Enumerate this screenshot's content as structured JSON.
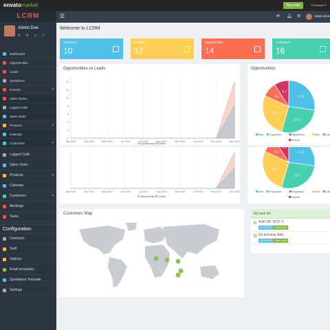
{
  "envato": {
    "logo_prefix": "envato",
    "logo_suffix": "market",
    "buy": "Buy now",
    "remove": "Remove F"
  },
  "brand": "LCRM",
  "user": {
    "name": "Admin Doe",
    "icons": "✉ ⚙ ⊙ ⏻"
  },
  "topbar": {
    "user": "Admin Doe"
  },
  "menu_top": [
    {
      "label": "Dashboard",
      "color": "#5bc0de"
    },
    {
      "label": "Opportunities",
      "color": "#e9573f"
    },
    {
      "label": "Leads",
      "color": "#e9573f"
    },
    {
      "label": "Quotations",
      "color": "#a0aec0"
    },
    {
      "label": "Invoices",
      "color": "#e9573f",
      "caret": true
    },
    {
      "label": "Sales Teams",
      "color": "#e9573f"
    },
    {
      "label": "Logged Calls",
      "color": "#a0aec0"
    },
    {
      "label": "Sales Order",
      "color": "#5bc0de"
    },
    {
      "label": "Products",
      "color": "#f6bb42",
      "caret": true
    },
    {
      "label": "Calendar",
      "color": "#5bc0de"
    },
    {
      "label": "Customers",
      "color": "#48cfad",
      "caret": true
    }
  ],
  "menu_bottom": [
    {
      "label": "Logged Calls",
      "color": "#a0aec0"
    },
    {
      "label": "Sales Order",
      "color": "#5bc0de"
    },
    {
      "label": "Products",
      "color": "#f6bb42",
      "caret": true
    },
    {
      "label": "Calendar",
      "color": "#5bc0de"
    },
    {
      "label": "Customers",
      "color": "#48cfad",
      "caret": true
    },
    {
      "label": "Meetings",
      "color": "#e9573f"
    },
    {
      "label": "Tasks",
      "color": "#e9573f"
    }
  ],
  "config_title": "Configuration",
  "menu_config": [
    {
      "label": "Contracts",
      "color": "#a0aec0"
    },
    {
      "label": "Staff",
      "color": "#f6bb42"
    },
    {
      "label": "Options",
      "color": "#f6bb42"
    },
    {
      "label": "Email templates",
      "color": "#8cc152"
    },
    {
      "label": "Quotations Template",
      "color": "#5bc0de"
    },
    {
      "label": "Settings",
      "color": "#a0aec0"
    }
  ],
  "welcome": "Welcome to LCRM",
  "cards": [
    {
      "label": "Contracts",
      "value": "10",
      "color": "#4fc1e9"
    },
    {
      "label": "Products",
      "value": "12",
      "color": "#ffce54"
    },
    {
      "label": "Opportunities",
      "value": "14",
      "color": "#fc6e51"
    },
    {
      "label": "Customers",
      "value": "16",
      "color": "#48cfad"
    }
  ],
  "line_panel_title": "Opportunities vs Leads",
  "pie_panel_title": "Opportunities",
  "map_title": "Customers Map",
  "task_title": "My task list",
  "tasks": [
    {
      "name": "ASK DE TEST 2",
      "date": "01.02.2016.",
      "who": "Admin Doe"
    },
    {
      "name": "De terminar Abd",
      "date": "29.01.2016.",
      "who": "Admin Doe"
    }
  ],
  "chart_data": [
    {
      "type": "area",
      "x": [
        "Mar 2015",
        "Apr 2015",
        "May 2015",
        "Jun 2015",
        "Jul 2015",
        "Aug 2015",
        "Sep 2015",
        "Oct 2015",
        "Nov 2015",
        "Dec 2015"
      ],
      "ylim": [
        0,
        15
      ],
      "yticks": [
        0,
        2,
        4,
        6,
        8,
        10,
        12,
        14
      ],
      "series": [
        {
          "name": "Opportunity",
          "color": "#f4b4a4",
          "values": [
            0,
            0,
            0,
            0,
            0,
            0,
            0,
            0,
            0,
            14
          ]
        },
        {
          "name": "Leads",
          "color": "#9fbfd0",
          "values": [
            0,
            0,
            0,
            0,
            0,
            0,
            0,
            0,
            0,
            8
          ]
        }
      ]
    },
    {
      "type": "area",
      "x": [
        "Mar 2015",
        "Apr 2015",
        "May 2015",
        "Jun 2015",
        "Jul 2015",
        "Aug 2015",
        "Sep 2015",
        "Oct 2015",
        "Nov 2015",
        "Dec 2015"
      ],
      "series": [
        {
          "name": "Opportunity",
          "color": "#f4b4a4",
          "values": [
            0,
            0,
            0,
            0,
            0,
            0,
            0,
            0,
            0,
            14
          ]
        },
        {
          "name": "Leads",
          "color": "#9fbfd0",
          "values": [
            0,
            0,
            0,
            0,
            0,
            0,
            0,
            0,
            0,
            8
          ]
        }
      ]
    },
    {
      "type": "pie",
      "legend": [
        "New",
        "Proposition",
        "Negotiation",
        "Won",
        "Lost",
        "Expired"
      ],
      "slices": [
        {
          "name": "New",
          "value": 27.3,
          "color": "#4fc1e9"
        },
        {
          "name": "Proposition",
          "value": 27.3,
          "color": "#48cfad"
        },
        {
          "name": "Negotiation",
          "value": 27.3,
          "color": "#ffce54"
        },
        {
          "name": "Won",
          "value": 9.1,
          "color": "#fc6e51"
        },
        {
          "name": "Lost",
          "value": 9.1,
          "color": "#d23264"
        }
      ],
      "legend_colors": [
        "#4fc1e9",
        "#48cfad",
        "#2ca58d",
        "#ffce54",
        "#fc6e51",
        "#d23264"
      ]
    },
    {
      "type": "pie",
      "legend": [
        "New",
        "Proposition",
        "Negotiation",
        "Won",
        "Lost",
        "Expired"
      ],
      "slices": [
        {
          "name": "New",
          "value": 27.3,
          "color": "#4fc1e9"
        },
        {
          "name": "Proposition",
          "value": 27.3,
          "color": "#48cfad"
        },
        {
          "name": "Negotiation",
          "value": 27.3,
          "color": "#ffce54"
        },
        {
          "name": "Won",
          "value": 9.1,
          "color": "#fc6e51"
        },
        {
          "name": "Lost",
          "value": 9.1,
          "color": "#d23264"
        }
      ],
      "legend_colors": [
        "#4fc1e9",
        "#48cfad",
        "#2ca58d",
        "#ffce54",
        "#fc6e51",
        "#d23264"
      ]
    }
  ]
}
